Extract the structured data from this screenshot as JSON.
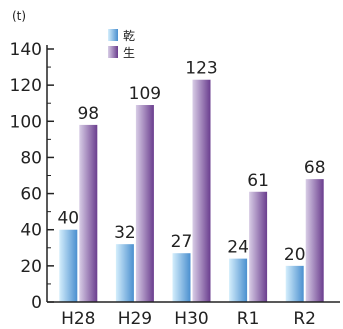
{
  "chart_data": {
    "type": "bar",
    "title": "",
    "unit": "(t)",
    "xlabel": "",
    "ylabel": "",
    "categories": [
      "H28",
      "H29",
      "H30",
      "R1",
      "R2"
    ],
    "series": [
      {
        "name": "乾",
        "values": [
          40,
          32,
          27,
          24,
          20
        ],
        "color_light": "#d4eefc",
        "color_dark": "#4a8fcf"
      },
      {
        "name": "生",
        "values": [
          98,
          109,
          123,
          61,
          68
        ],
        "color_light": "#d8cde6",
        "color_dark": "#6a3d8e"
      }
    ],
    "ylim": [
      0,
      140
    ],
    "yticks": [
      0,
      20,
      40,
      60,
      80,
      100,
      120,
      140
    ],
    "grid": false,
    "legend": "top-left"
  }
}
